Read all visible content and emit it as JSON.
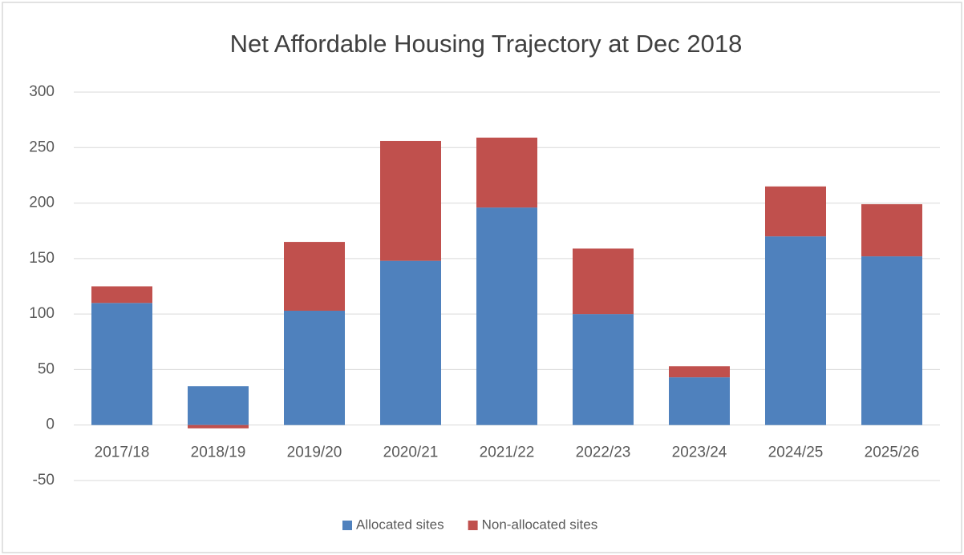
{
  "chart_data": {
    "type": "stacked_bar",
    "title": "Net Affordable Housing Trajectory at Dec 2018",
    "categories": [
      "2017/18",
      "2018/19",
      "2019/20",
      "2020/21",
      "2021/22",
      "2022/23",
      "2023/24",
      "2024/25",
      "2025/26"
    ],
    "series": [
      {
        "name": "Allocated sites",
        "color": "#4f81bd",
        "values": [
          110,
          35,
          103,
          148,
          196,
          100,
          43,
          170,
          152
        ]
      },
      {
        "name": "Non-allocated sites",
        "color": "#c0504d",
        "values": [
          15,
          -3,
          62,
          108,
          63,
          59,
          10,
          45,
          47
        ]
      }
    ],
    "ylim": [
      -50,
      300
    ],
    "yticks": [
      -50,
      0,
      50,
      100,
      150,
      200,
      250,
      300
    ],
    "grid": true,
    "legend": "bottom"
  }
}
